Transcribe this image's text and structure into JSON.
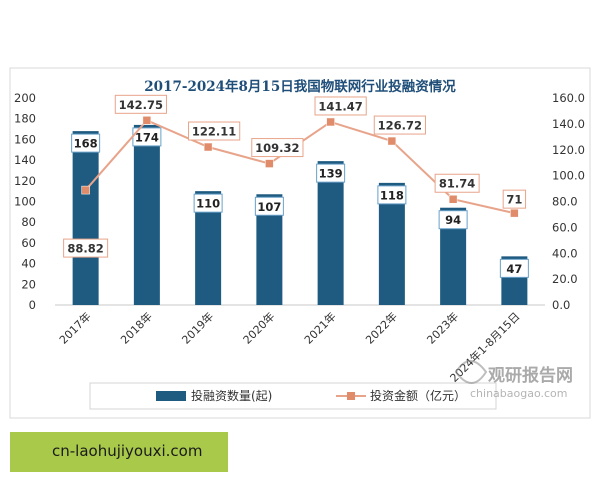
{
  "chart_data": {
    "type": "bar",
    "title": "2017-2024年8月15日我国物联网行业投融资情况",
    "categories": [
      "2017年",
      "2018年",
      "2019年",
      "2020年",
      "2021年",
      "2022年",
      "2023年",
      "2024年1-8月15日"
    ],
    "series": [
      {
        "name": "投融资数量(起)",
        "type": "bar",
        "axis": "left",
        "color": "#1f5b80",
        "values": [
          168,
          174,
          110,
          107,
          139,
          118,
          94,
          47
        ]
      },
      {
        "name": "投资金额（亿元）",
        "type": "line",
        "axis": "right",
        "color": "#e8a48a",
        "values": [
          88.82,
          142.75,
          122.11,
          109.32,
          141.47,
          126.72,
          81.74,
          71
        ]
      }
    ],
    "value_labels_line": [
      "88.82",
      "142.75",
      "122.11",
      "109.32",
      "141.47",
      "126.72",
      "81.74",
      "71"
    ],
    "ylim_left": [
      0,
      200
    ],
    "yticks_left": [
      "0",
      "20",
      "40",
      "60",
      "80",
      "100",
      "120",
      "140",
      "160",
      "180",
      "200"
    ],
    "ylim_right": [
      0,
      160
    ],
    "yticks_right": [
      "0.0",
      "20.0",
      "40.0",
      "60.0",
      "80.0",
      "100.0",
      "120.0",
      "140.0",
      "160.0"
    ],
    "legend_position": "bottom",
    "grid": false
  },
  "watermark": {
    "brand": "观研报告网",
    "url": "chinabaogao.com"
  },
  "footer": {
    "text": "cn-laohujiyouxi.com"
  }
}
